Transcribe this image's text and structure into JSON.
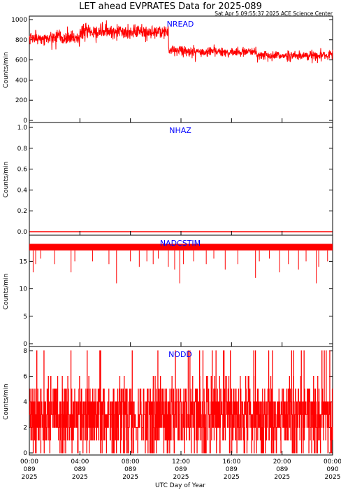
{
  "title": "LET ahead EVPRATES Data for 2025-089",
  "timestamp": "Sat Apr  5 09:55:37 2025 ACE Science Center",
  "xlabel": "UTC Day of Year",
  "colors": {
    "series": "#ff0000",
    "panel_label": "#0000ff",
    "axes": "#000000"
  },
  "x_ticks": [
    {
      "time": "00:00",
      "day": "089",
      "year": "2025"
    },
    {
      "time": "04:00",
      "day": "089",
      "year": "2025"
    },
    {
      "time": "08:00",
      "day": "089",
      "year": "2025"
    },
    {
      "time": "12:00",
      "day": "089",
      "year": "2025"
    },
    {
      "time": "16:00",
      "day": "089",
      "year": "2025"
    },
    {
      "time": "20:00",
      "day": "089",
      "year": "2025"
    },
    {
      "time": "00:00",
      "day": "090",
      "year": "2025"
    }
  ],
  "chart_data": [
    {
      "type": "line",
      "label": "NREAD",
      "ylabel": "Counts/min",
      "ylim": [
        0,
        1000
      ],
      "yticks": [
        0,
        200,
        400,
        600,
        800,
        1000
      ],
      "ytick_labels": [
        "0",
        "200",
        "400",
        "600",
        "800",
        "1000"
      ],
      "x_range_hours": [
        0,
        24
      ],
      "segments": [
        {
          "t_start": 0,
          "t_end": 4,
          "level": 820,
          "noise": 55
        },
        {
          "t_start": 4,
          "t_end": 8,
          "level": 880,
          "noise": 55
        },
        {
          "t_start": 8,
          "t_end": 11,
          "level": 880,
          "noise": 50
        },
        {
          "t_start": 11,
          "t_end": 12,
          "level": 700,
          "noise": 45
        },
        {
          "t_start": 12,
          "t_end": 18,
          "level": 680,
          "noise": 40
        },
        {
          "t_start": 18,
          "t_end": 24,
          "level": 645,
          "noise": 35
        }
      ]
    },
    {
      "type": "line",
      "label": "NHAZ",
      "ylabel": "Counts/min",
      "ylim": [
        0,
        1.0
      ],
      "yticks": [
        0,
        0.2,
        0.4,
        0.6,
        0.8,
        1.0
      ],
      "ytick_labels": [
        "0.0",
        "0.2",
        "0.4",
        "0.6",
        "0.8",
        "1.0"
      ],
      "x_range_hours": [
        0,
        24
      ],
      "constant_value": 0
    },
    {
      "type": "line",
      "label": "NADCSTIM",
      "ylabel": "Counts/min",
      "ylim": [
        0,
        19
      ],
      "yticks": [
        0,
        5,
        10,
        15
      ],
      "ytick_labels": [
        "0",
        "5",
        "10",
        "15"
      ],
      "x_range_hours": [
        0,
        24
      ],
      "band": [
        17.0,
        18.2
      ],
      "dips": [
        {
          "t": 0.3,
          "v": 13.0
        },
        {
          "t": 0.5,
          "v": 14.5
        },
        {
          "t": 0.9,
          "v": 15.5
        },
        {
          "t": 2.0,
          "v": 14.5
        },
        {
          "t": 3.3,
          "v": 13.0
        },
        {
          "t": 3.6,
          "v": 15.0
        },
        {
          "t": 5.0,
          "v": 15.0
        },
        {
          "t": 6.3,
          "v": 14.5
        },
        {
          "t": 6.9,
          "v": 11.0
        },
        {
          "t": 8.0,
          "v": 15.0
        },
        {
          "t": 8.7,
          "v": 14.0
        },
        {
          "t": 9.3,
          "v": 15.0
        },
        {
          "t": 9.8,
          "v": 14.5
        },
        {
          "t": 10.2,
          "v": 15.5
        },
        {
          "t": 11.0,
          "v": 14.0
        },
        {
          "t": 11.5,
          "v": 13.5
        },
        {
          "t": 11.9,
          "v": 11.0
        },
        {
          "t": 12.2,
          "v": 14.5
        },
        {
          "t": 13.0,
          "v": 15.0
        },
        {
          "t": 14.0,
          "v": 14.5
        },
        {
          "t": 14.6,
          "v": 15.5
        },
        {
          "t": 15.5,
          "v": 13.5
        },
        {
          "t": 16.5,
          "v": 14.5
        },
        {
          "t": 17.9,
          "v": 12.0
        },
        {
          "t": 18.2,
          "v": 15.0
        },
        {
          "t": 19.0,
          "v": 15.5
        },
        {
          "t": 19.8,
          "v": 13.0
        },
        {
          "t": 20.5,
          "v": 14.5
        },
        {
          "t": 21.3,
          "v": 13.5
        },
        {
          "t": 21.9,
          "v": 15.0
        },
        {
          "t": 22.7,
          "v": 11.0
        },
        {
          "t": 22.9,
          "v": 14.0
        },
        {
          "t": 23.6,
          "v": 15.0
        }
      ]
    },
    {
      "type": "line",
      "label": "NODD",
      "ylabel": "Counts/min",
      "ylim": [
        0,
        8
      ],
      "yticks": [
        0,
        2,
        4,
        6,
        8
      ],
      "ytick_labels": [
        "0",
        "2",
        "4",
        "6",
        "8"
      ],
      "x_range_hours": [
        0,
        24
      ],
      "value_range": [
        0,
        8
      ],
      "typical_range": [
        1,
        5
      ]
    }
  ]
}
